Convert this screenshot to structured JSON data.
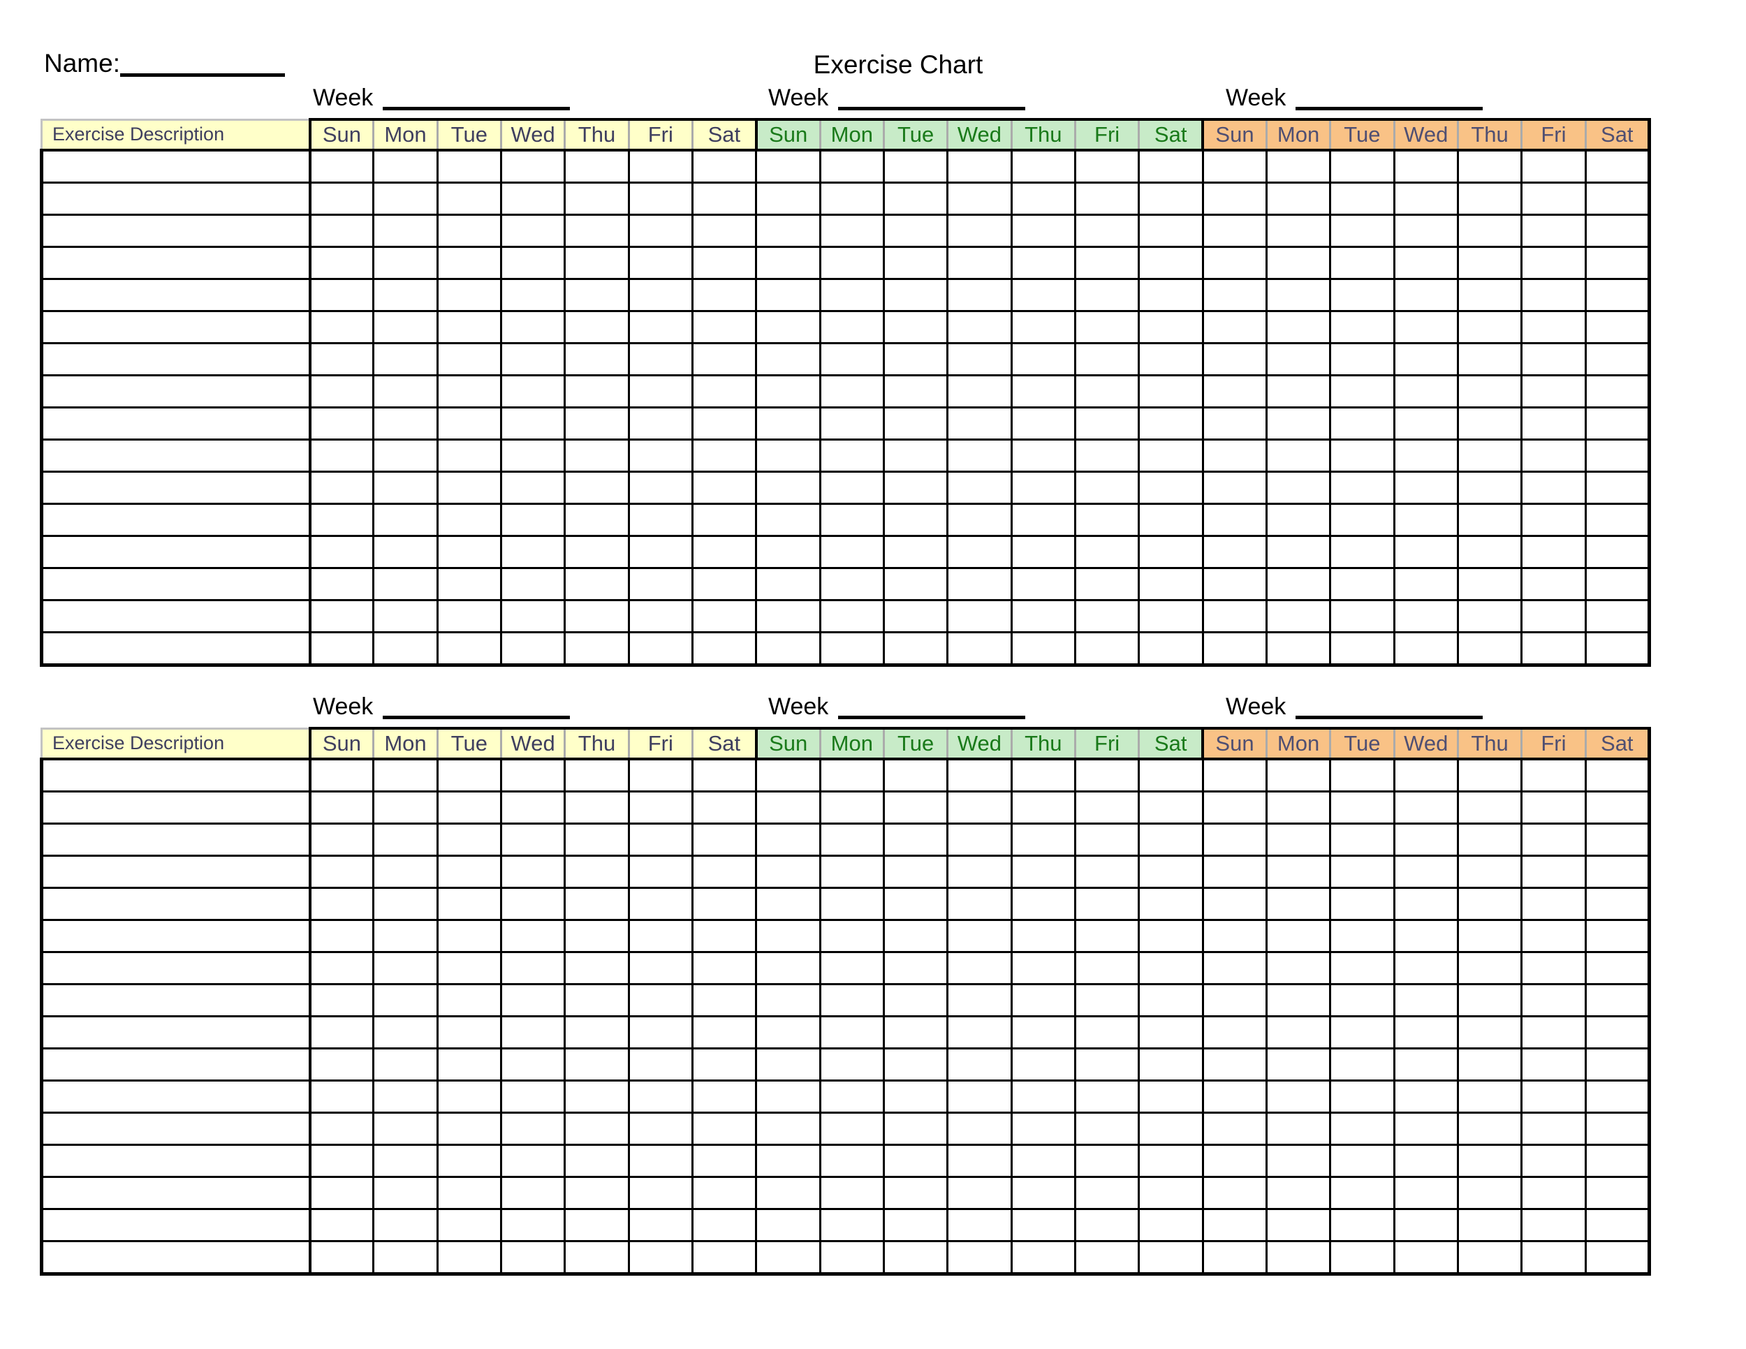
{
  "header": {
    "name_label": "Name:",
    "title": "Exercise Chart"
  },
  "week_label": "Week",
  "description_header": "Exercise Description",
  "days": [
    "Sun",
    "Mon",
    "Tue",
    "Wed",
    "Thu",
    "Fri",
    "Sat"
  ],
  "week_groups": [
    {
      "name": "week-1",
      "bg": "#FFFFC9",
      "text_color": "#3F3F5F"
    },
    {
      "name": "week-2",
      "bg": "#C8EBC8",
      "text_color": "#1A7A1A"
    },
    {
      "name": "week-3",
      "bg": "#F9C286",
      "text_color": "#4F4F72"
    }
  ],
  "description_cell": {
    "bg": "#FFFFC9",
    "text_color": "#3F3F5F"
  },
  "structure": {
    "tables": 2,
    "rows_per_table": 16,
    "weeks_per_table": 3,
    "days_per_week": 7
  }
}
